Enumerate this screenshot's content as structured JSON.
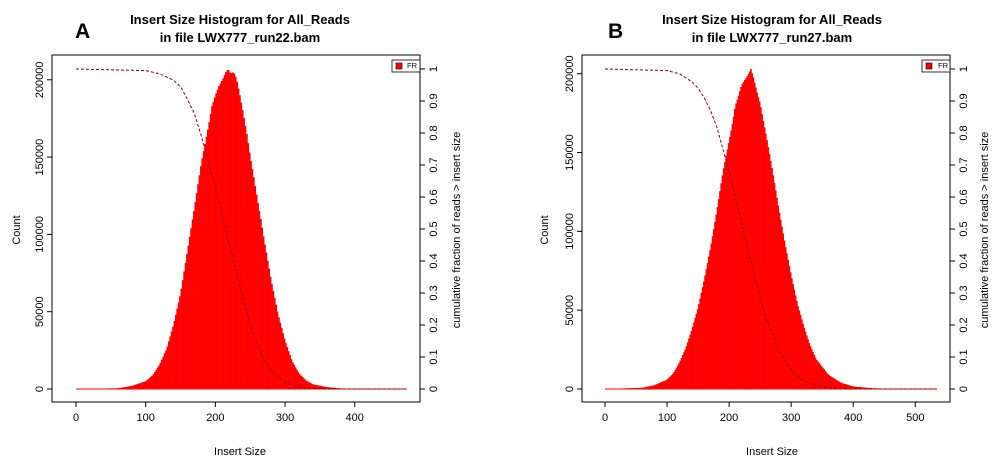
{
  "chart_data": [
    {
      "panel_label": "A",
      "type": "bar",
      "title": "Insert Size Histogram for All_Reads",
      "subtitle": "in file LWX777_run22.bam",
      "xlabel": "Insert Size",
      "ylabel": "Count",
      "y2label": "cumulative fraction of reads > insert size",
      "xlim": [
        0,
        475
      ],
      "ylim": [
        0,
        207000
      ],
      "y2lim": [
        0,
        1
      ],
      "xticks": [
        "0",
        "100",
        "200",
        "300",
        "400"
      ],
      "yticks": [
        "0",
        "50000",
        "100000",
        "150000",
        "200000"
      ],
      "y2ticks": [
        "0",
        "0.1",
        "0.2",
        "0.3",
        "0.4",
        "0.5",
        "0.6",
        "0.7",
        "0.8",
        "0.9",
        "1"
      ],
      "legend": {
        "position": "top-right",
        "entries": [
          {
            "label": "FR",
            "color": "#ff0000"
          }
        ]
      },
      "grid": false,
      "series": [
        {
          "name": "FR",
          "kind": "histogram",
          "color": "#ff0000",
          "x": [
            0,
            60,
            80,
            100,
            110,
            120,
            130,
            140,
            150,
            160,
            170,
            180,
            190,
            195,
            200,
            205,
            210,
            215,
            218,
            222,
            226,
            230,
            235,
            240,
            245,
            250,
            255,
            260,
            265,
            270,
            280,
            290,
            300,
            310,
            320,
            330,
            340,
            360,
            380,
            400,
            475
          ],
          "values": [
            0,
            500,
            2000,
            5000,
            9000,
            16000,
            26000,
            42000,
            62000,
            90000,
            118000,
            147000,
            170000,
            183000,
            190000,
            196000,
            200000,
            205000,
            207000,
            204000,
            205000,
            201000,
            190000,
            178000,
            165000,
            150000,
            137000,
            123000,
            110000,
            96000,
            70000,
            48000,
            31000,
            18000,
            10000,
            5500,
            3000,
            1200,
            400,
            100,
            0
          ]
        },
        {
          "name": "",
          "kind": "cumulative",
          "axis": "right",
          "color": "#8b0000",
          "x": [
            0,
            100,
            120,
            140,
            150,
            160,
            170,
            180,
            190,
            200,
            210,
            220,
            230,
            240,
            250,
            260,
            270,
            280,
            300,
            320,
            340,
            360,
            380,
            475
          ],
          "values": [
            1,
            0.995,
            0.985,
            0.965,
            0.945,
            0.905,
            0.86,
            0.79,
            0.71,
            0.63,
            0.54,
            0.45,
            0.37,
            0.28,
            0.2,
            0.14,
            0.09,
            0.06,
            0.02,
            0.006,
            0.002,
            0.001,
            0,
            0
          ]
        }
      ]
    },
    {
      "panel_label": "B",
      "type": "bar",
      "title": "Insert Size Histogram for All_Reads",
      "subtitle": "in file LWX777_run27.bam",
      "xlabel": "Insert Size",
      "ylabel": "Count",
      "y2label": "cumulative fraction of reads > insert size",
      "xlim": [
        0,
        535
      ],
      "ylim": [
        0,
        203000
      ],
      "y2lim": [
        0,
        1
      ],
      "xticks": [
        "0",
        "100",
        "200",
        "300",
        "400",
        "500"
      ],
      "yticks": [
        "0",
        "50000",
        "100000",
        "150000",
        "200000"
      ],
      "y2ticks": [
        "0",
        "0.1",
        "0.2",
        "0.3",
        "0.4",
        "0.5",
        "0.6",
        "0.7",
        "0.8",
        "0.9",
        "1"
      ],
      "legend": {
        "position": "top-right",
        "entries": [
          {
            "label": "FR",
            "color": "#ff0000"
          }
        ]
      },
      "grid": false,
      "series": [
        {
          "name": "FR",
          "kind": "histogram",
          "color": "#ff0000",
          "x": [
            0,
            60,
            80,
            100,
            110,
            120,
            130,
            140,
            150,
            160,
            170,
            180,
            190,
            200,
            205,
            210,
            215,
            220,
            225,
            230,
            235,
            240,
            245,
            250,
            255,
            260,
            270,
            280,
            290,
            300,
            310,
            320,
            330,
            340,
            360,
            380,
            400,
            430,
            460,
            535
          ],
          "values": [
            0,
            800,
            2500,
            6000,
            10000,
            17000,
            26000,
            38000,
            52000,
            70000,
            90000,
            113000,
            138000,
            158000,
            168000,
            180000,
            186000,
            193000,
            196000,
            199000,
            203000,
            196000,
            188000,
            181000,
            170000,
            160000,
            138000,
            114000,
            92000,
            72000,
            54000,
            40000,
            28000,
            19000,
            9000,
            4000,
            1600,
            500,
            100,
            0
          ]
        },
        {
          "name": "",
          "kind": "cumulative",
          "axis": "right",
          "color": "#8b0000",
          "x": [
            0,
            100,
            120,
            140,
            150,
            160,
            170,
            180,
            190,
            200,
            210,
            220,
            230,
            240,
            250,
            260,
            270,
            280,
            300,
            320,
            340,
            360,
            380,
            535
          ],
          "values": [
            1,
            0.995,
            0.985,
            0.96,
            0.94,
            0.91,
            0.87,
            0.82,
            0.75,
            0.68,
            0.6,
            0.52,
            0.44,
            0.36,
            0.29,
            0.22,
            0.17,
            0.12,
            0.06,
            0.025,
            0.01,
            0.004,
            0,
            0
          ]
        }
      ]
    }
  ]
}
